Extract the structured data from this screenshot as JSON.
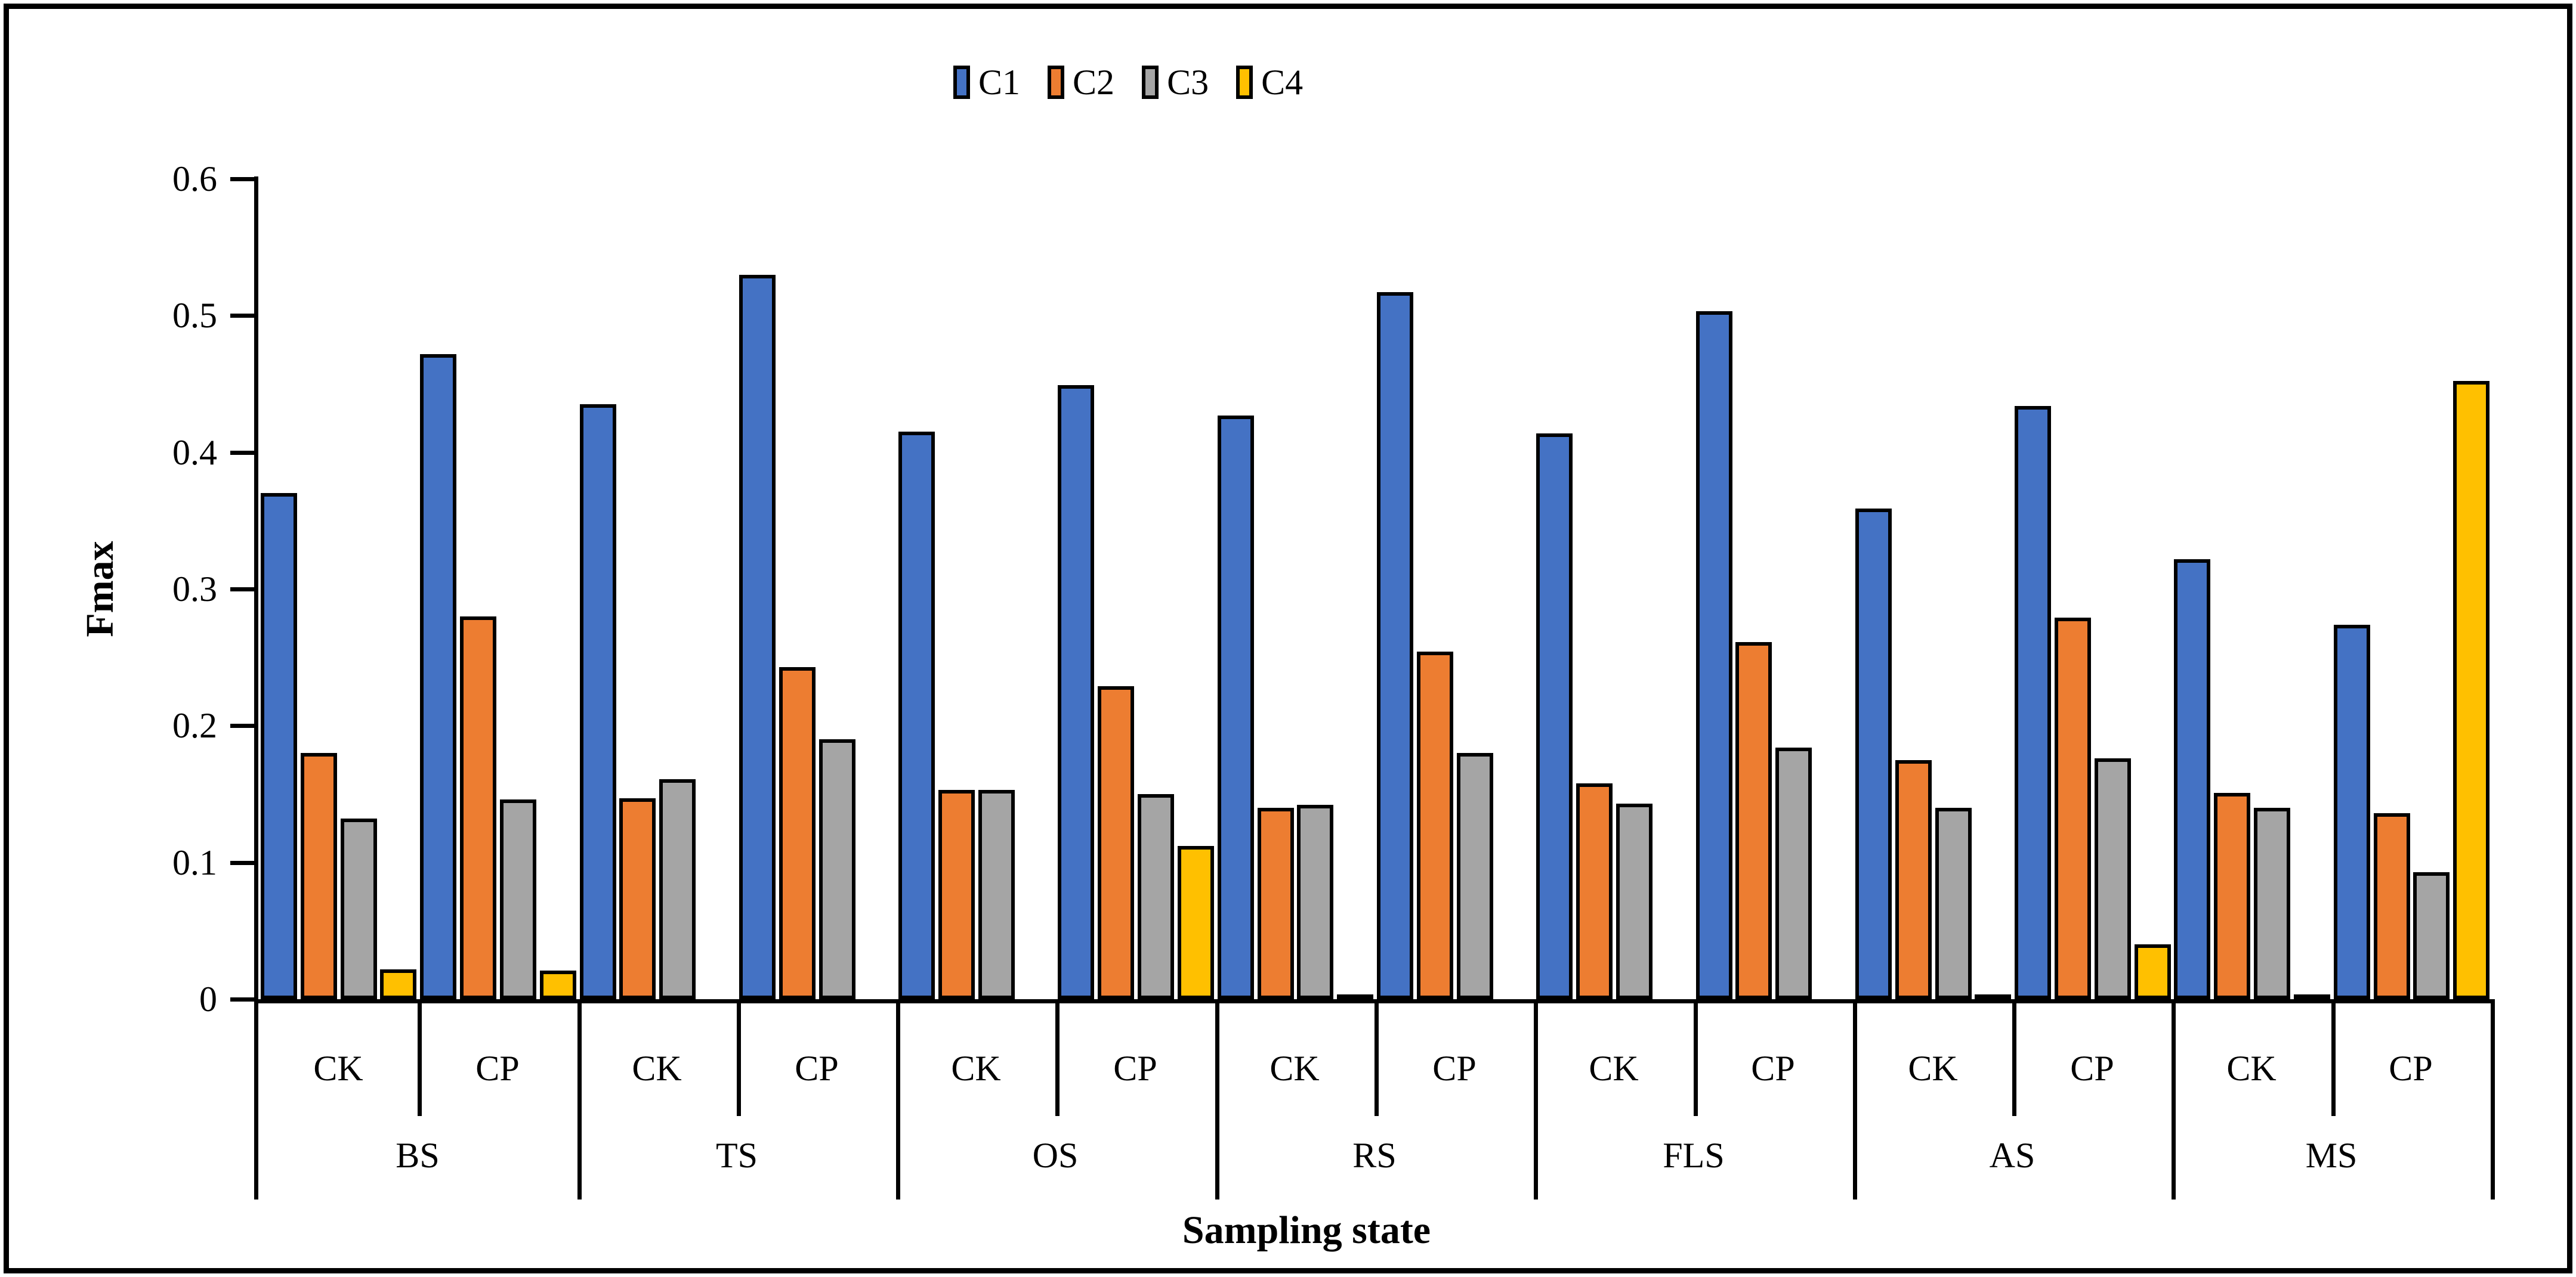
{
  "chart_data": {
    "type": "bar",
    "title": "",
    "ylabel": "Fmax",
    "xlabel": "Sampling state",
    "ylim": [
      0,
      0.6
    ],
    "ytick_labels": [
      "0",
      "0.1",
      "0.2",
      "0.3",
      "0.4",
      "0.5",
      "0.6"
    ],
    "yticks": [
      0,
      0.1,
      0.2,
      0.3,
      0.4,
      0.5,
      0.6
    ],
    "grid": false,
    "legend_position": "top-center",
    "series_names": [
      "C1",
      "C2",
      "C3",
      "C4"
    ],
    "series_colors": [
      "#4472C4",
      "#ED7D31",
      "#A5A5A5",
      "#FFC000"
    ],
    "subgroup_labels": [
      "CK",
      "CP"
    ],
    "group_labels": [
      "BS",
      "TS",
      "OS",
      "RS",
      "FLS",
      "AS",
      "MS"
    ],
    "groups": [
      {
        "label": "BS",
        "subgroups": [
          {
            "label": "CK",
            "values": [
              0.37,
              0.18,
              0.132,
              0.022
            ]
          },
          {
            "label": "CP",
            "values": [
              0.472,
              0.28,
              0.146,
              0.021
            ]
          }
        ]
      },
      {
        "label": "TS",
        "subgroups": [
          {
            "label": "CK",
            "values": [
              0.435,
              0.147,
              0.161,
              0
            ]
          },
          {
            "label": "CP",
            "values": [
              0.53,
              0.243,
              0.19,
              0
            ]
          }
        ]
      },
      {
        "label": "OS",
        "subgroups": [
          {
            "label": "CK",
            "values": [
              0.415,
              0.153,
              0.153,
              0
            ]
          },
          {
            "label": "CP",
            "values": [
              0.449,
              0.229,
              0.15,
              0.112
            ]
          }
        ]
      },
      {
        "label": "RS",
        "subgroups": [
          {
            "label": "CK",
            "values": [
              0.427,
              0.14,
              0.142,
              0.002
            ]
          },
          {
            "label": "CP",
            "values": [
              0.517,
              0.254,
              0.18,
              0
            ]
          }
        ]
      },
      {
        "label": "FLS",
        "subgroups": [
          {
            "label": "CK",
            "values": [
              0.414,
              0.158,
              0.143,
              0
            ]
          },
          {
            "label": "CP",
            "values": [
              0.503,
              0.261,
              0.184,
              0
            ]
          }
        ]
      },
      {
        "label": "AS",
        "subgroups": [
          {
            "label": "CK",
            "values": [
              0.359,
              0.175,
              0.14,
              0.003
            ]
          },
          {
            "label": "CP",
            "values": [
              0.434,
              0.279,
              0.176,
              0.04
            ]
          }
        ]
      },
      {
        "label": "MS",
        "subgroups": [
          {
            "label": "CK",
            "values": [
              0.322,
              0.151,
              0.14,
              0.002
            ]
          },
          {
            "label": "CP",
            "values": [
              0.274,
              0.136,
              0.093,
              0.452
            ]
          }
        ]
      }
    ]
  }
}
